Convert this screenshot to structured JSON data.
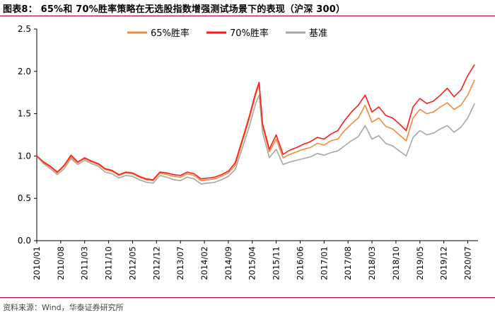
{
  "header": {
    "title": "图表8：  65%和 70%胜率策略在无选股指数增强测试场景下的表现（沪深 300）"
  },
  "footer": {
    "source": "资料来源：Wind，华泰证券研究所"
  },
  "colors": {
    "series_65": "#f08c3c",
    "series_70": "#ff1a1a",
    "series_base": "#a6a6a6",
    "axis": "#000000",
    "header_rule": "#b0002a"
  },
  "chart_data": {
    "type": "line",
    "title": "",
    "xlabel": "",
    "ylabel": "",
    "ylim": [
      0.0,
      2.5
    ],
    "yticks": [
      "0.0",
      "0.5",
      "1.0",
      "1.5",
      "2.0",
      "2.5"
    ],
    "xticks": [
      "2010/01",
      "2010/08",
      "2011/03",
      "2011/10",
      "2012/05",
      "2012/12",
      "2013/07",
      "2014/02",
      "2014/09",
      "2015/04",
      "2015/11",
      "2016/06",
      "2017/01",
      "2017/08",
      "2018/03",
      "2018/10",
      "2019/05",
      "2019/12",
      "2020/07"
    ],
    "grid": false,
    "legend": "top-center",
    "x": [
      "2010/01",
      "2010/03",
      "2010/05",
      "2010/07",
      "2010/09",
      "2010/11",
      "2011/01",
      "2011/03",
      "2011/05",
      "2011/07",
      "2011/09",
      "2011/11",
      "2012/01",
      "2012/03",
      "2012/05",
      "2012/07",
      "2012/09",
      "2012/11",
      "2013/01",
      "2013/03",
      "2013/05",
      "2013/07",
      "2013/09",
      "2013/11",
      "2014/01",
      "2014/03",
      "2014/05",
      "2014/07",
      "2014/09",
      "2014/11",
      "2015/01",
      "2015/03",
      "2015/05",
      "2015/06",
      "2015/07",
      "2015/09",
      "2015/11",
      "2016/01",
      "2016/03",
      "2016/05",
      "2016/07",
      "2016/09",
      "2016/11",
      "2017/01",
      "2017/03",
      "2017/05",
      "2017/07",
      "2017/09",
      "2017/11",
      "2018/01",
      "2018/03",
      "2018/05",
      "2018/07",
      "2018/09",
      "2018/11",
      "2019/01",
      "2019/03",
      "2019/05",
      "2019/07",
      "2019/09",
      "2019/11",
      "2020/01",
      "2020/03",
      "2020/05",
      "2020/07",
      "2020/09"
    ],
    "series": [
      {
        "name": "65%胜率",
        "color": "#f08c3c",
        "values": [
          1.0,
          0.92,
          0.87,
          0.8,
          0.88,
          0.99,
          0.92,
          0.97,
          0.93,
          0.9,
          0.84,
          0.82,
          0.77,
          0.8,
          0.79,
          0.75,
          0.72,
          0.71,
          0.8,
          0.78,
          0.76,
          0.75,
          0.79,
          0.77,
          0.71,
          0.72,
          0.73,
          0.76,
          0.8,
          0.89,
          1.15,
          1.42,
          1.72,
          1.85,
          1.35,
          1.05,
          1.2,
          0.98,
          1.02,
          1.05,
          1.08,
          1.1,
          1.15,
          1.13,
          1.18,
          1.2,
          1.3,
          1.38,
          1.45,
          1.6,
          1.4,
          1.45,
          1.35,
          1.32,
          1.25,
          1.18,
          1.45,
          1.55,
          1.5,
          1.52,
          1.58,
          1.63,
          1.55,
          1.6,
          1.72,
          1.9
        ]
      },
      {
        "name": "70%胜率",
        "color": "#ff1a1a",
        "values": [
          1.0,
          0.93,
          0.88,
          0.81,
          0.89,
          1.01,
          0.93,
          0.98,
          0.94,
          0.91,
          0.85,
          0.83,
          0.78,
          0.81,
          0.8,
          0.76,
          0.73,
          0.72,
          0.81,
          0.8,
          0.78,
          0.77,
          0.81,
          0.79,
          0.73,
          0.74,
          0.75,
          0.78,
          0.82,
          0.92,
          1.18,
          1.45,
          1.75,
          1.87,
          1.38,
          1.08,
          1.25,
          1.02,
          1.07,
          1.1,
          1.14,
          1.17,
          1.22,
          1.2,
          1.26,
          1.3,
          1.42,
          1.52,
          1.6,
          1.72,
          1.52,
          1.58,
          1.48,
          1.45,
          1.38,
          1.3,
          1.58,
          1.68,
          1.62,
          1.65,
          1.72,
          1.8,
          1.7,
          1.78,
          1.95,
          2.08
        ]
      },
      {
        "name": "基准",
        "color": "#a6a6a6",
        "values": [
          1.0,
          0.91,
          0.85,
          0.78,
          0.85,
          0.97,
          0.9,
          0.95,
          0.91,
          0.88,
          0.81,
          0.79,
          0.74,
          0.77,
          0.76,
          0.72,
          0.69,
          0.68,
          0.77,
          0.75,
          0.72,
          0.71,
          0.75,
          0.73,
          0.67,
          0.68,
          0.69,
          0.72,
          0.76,
          0.84,
          1.08,
          1.33,
          1.62,
          1.72,
          1.28,
          0.98,
          1.08,
          0.9,
          0.93,
          0.95,
          0.97,
          0.99,
          1.03,
          1.01,
          1.04,
          1.06,
          1.12,
          1.18,
          1.23,
          1.36,
          1.2,
          1.24,
          1.15,
          1.12,
          1.06,
          1.0,
          1.22,
          1.3,
          1.25,
          1.27,
          1.32,
          1.36,
          1.28,
          1.34,
          1.45,
          1.62
        ]
      }
    ]
  }
}
